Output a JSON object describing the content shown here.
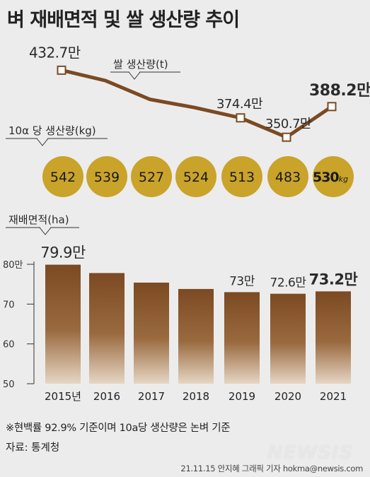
{
  "title": "벼 재배면적 및 쌀 생산량 추이",
  "chart_data": [
    {
      "type": "line",
      "name": "rice-production",
      "label": "쌀 생산량(t)",
      "x": [
        "2015",
        "2016",
        "2017",
        "2018",
        "2019",
        "2020",
        "2021"
      ],
      "values": [
        432.7,
        420.0,
        397.0,
        387.0,
        374.4,
        350.7,
        388.2
      ],
      "point_labels": [
        "432.7만",
        "",
        "",
        "",
        "374.4만",
        "350.7만",
        "388.2만"
      ],
      "marked": [
        true,
        false,
        false,
        false,
        true,
        true,
        true
      ],
      "color": "#7b4a22"
    },
    {
      "type": "table",
      "name": "yield-per-10a",
      "label": "10α 당 생산량(kg)",
      "values": [
        "542",
        "539",
        "527",
        "524",
        "513",
        "483",
        "530"
      ],
      "last_unit": "kg",
      "color": "#c9a32a"
    },
    {
      "type": "bar",
      "name": "cultivation-area",
      "label": "재배면적(ha)",
      "categories": [
        "2015년",
        "2016",
        "2017",
        "2018",
        "2019",
        "2020",
        "2021"
      ],
      "values": [
        79.9,
        77.8,
        75.4,
        73.8,
        73.0,
        72.6,
        73.2
      ],
      "bar_labels": [
        "79.9만",
        "",
        "",
        "",
        "73만",
        "72.6만",
        "73.2만"
      ],
      "yticks": [
        "80만",
        "70",
        "60",
        "50"
      ],
      "ylim": [
        50,
        80
      ],
      "color": "#7b4a22"
    }
  ],
  "footnote": "※현백률 92.9% 기준이며 10a당 생산량은 논벼 기준",
  "source": "자료: 통계청",
  "credit": "21.11.15 안지혜 그래픽 기자 hokma@newsis.com",
  "logo": "NEWSIS"
}
